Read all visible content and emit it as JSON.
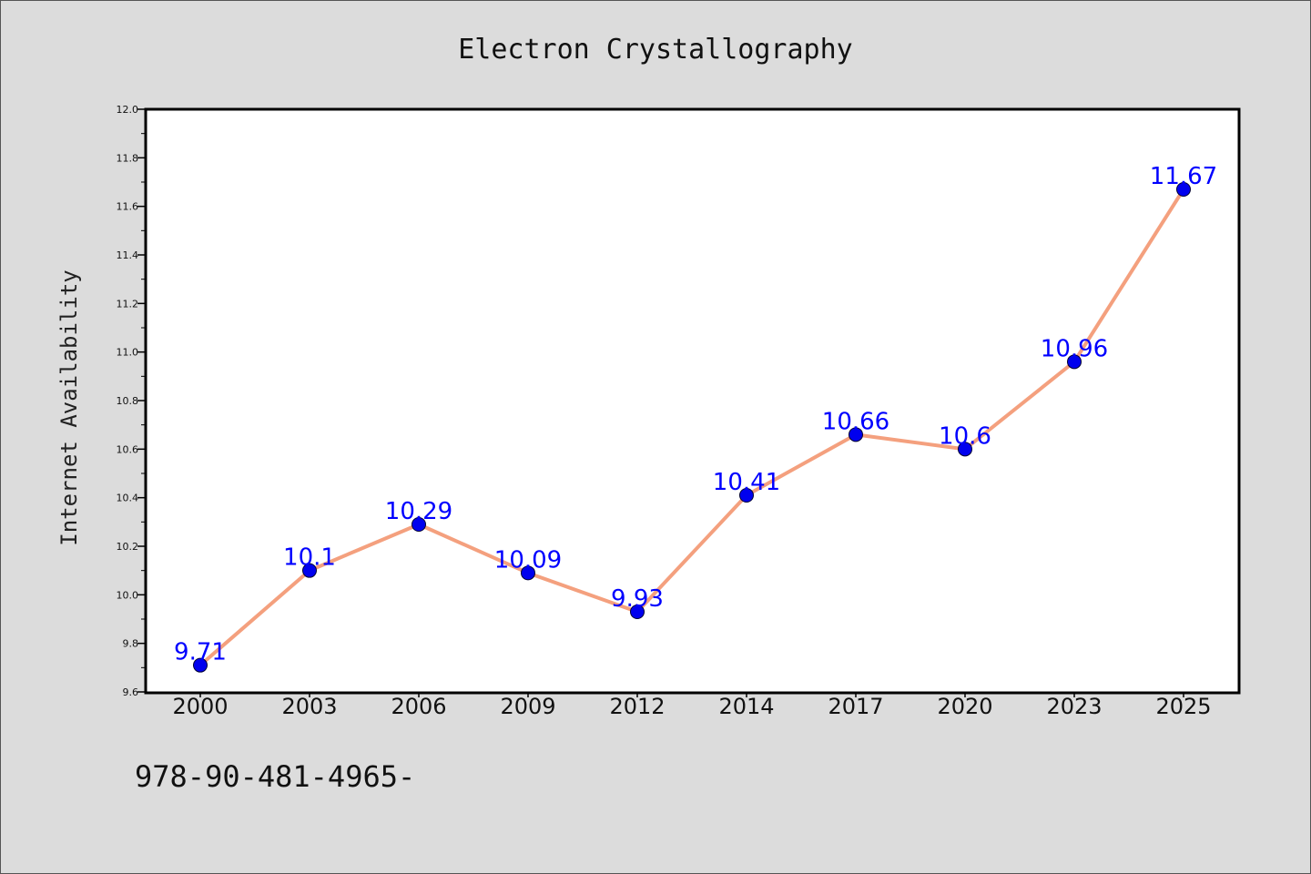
{
  "chart_data": {
    "type": "line",
    "title": "Electron Crystallography",
    "xlabel": "",
    "ylabel": "Internet Availability",
    "categories": [
      "2000",
      "2003",
      "2006",
      "2009",
      "2012",
      "2014",
      "2017",
      "2020",
      "2023",
      "2025"
    ],
    "values": [
      9.71,
      10.1,
      10.29,
      10.09,
      9.93,
      10.41,
      10.66,
      10.6,
      10.96,
      11.67
    ],
    "data_labels": [
      "9.71",
      "10.1",
      "10.29",
      "10.09",
      "9.93",
      "10.41",
      "10.66",
      "10.6",
      "10.96",
      "11.67"
    ],
    "ylim": [
      9.6,
      12.0
    ],
    "yticks": [
      "9.6",
      "9.8",
      "10.0",
      "10.2",
      "10.4",
      "10.6",
      "10.8",
      "11.0",
      "11.2",
      "11.4",
      "11.6",
      "11.8",
      "12.0"
    ],
    "grid": false,
    "colors": {
      "line": "#f4a07e",
      "marker": "#0000ee",
      "label": "#0000ff",
      "plot_background": "#ffffff",
      "figure_background": "#dcdcdc"
    }
  },
  "footer": {
    "text": "978-90-481-4965-"
  }
}
